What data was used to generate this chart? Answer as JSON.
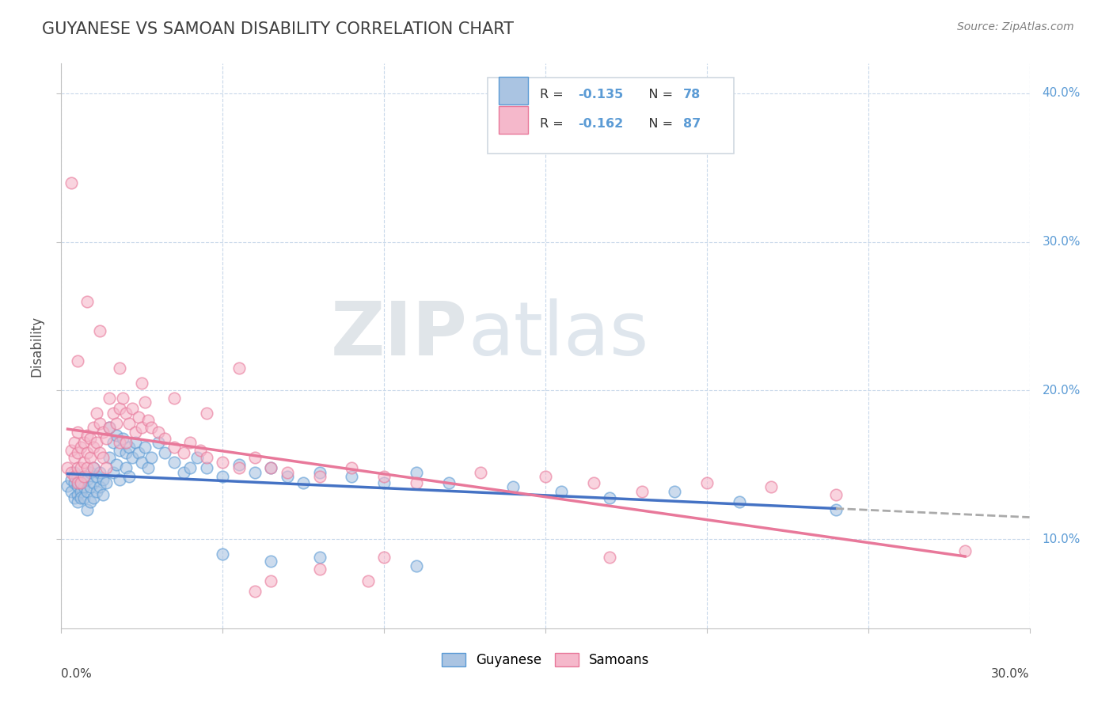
{
  "title": "GUYANESE VS SAMOAN DISABILITY CORRELATION CHART",
  "source": "Source: ZipAtlas.com",
  "ylabel": "Disability",
  "xlim": [
    0.0,
    0.3
  ],
  "ylim": [
    0.04,
    0.42
  ],
  "yticks": [
    0.1,
    0.2,
    0.3,
    0.4
  ],
  "ytick_labels": [
    "10.0%",
    "20.0%",
    "30.0%",
    "40.0%"
  ],
  "xticks": [
    0.0,
    0.05,
    0.1,
    0.15,
    0.2,
    0.25,
    0.3
  ],
  "guyanese_color": "#aac4e2",
  "samoans_color": "#f5b8cb",
  "guyanese_edge": "#5b9bd5",
  "samoans_edge": "#e8789a",
  "guyanese_line_color": "#4472c4",
  "samoans_line_color": "#e8789a",
  "legend_label1": "Guyanese",
  "legend_label2": "Samoans",
  "title_color": "#404040",
  "axis_color": "#5b9bd5",
  "grid_color": "#c8d8ea",
  "guyanese_points": [
    [
      0.002,
      0.136
    ],
    [
      0.003,
      0.14
    ],
    [
      0.003,
      0.132
    ],
    [
      0.004,
      0.138
    ],
    [
      0.004,
      0.128
    ],
    [
      0.004,
      0.145
    ],
    [
      0.005,
      0.142
    ],
    [
      0.005,
      0.13
    ],
    [
      0.005,
      0.136
    ],
    [
      0.005,
      0.125
    ],
    [
      0.006,
      0.138
    ],
    [
      0.006,
      0.132
    ],
    [
      0.006,
      0.128
    ],
    [
      0.007,
      0.142
    ],
    [
      0.007,
      0.135
    ],
    [
      0.007,
      0.128
    ],
    [
      0.008,
      0.14
    ],
    [
      0.008,
      0.132
    ],
    [
      0.008,
      0.12
    ],
    [
      0.009,
      0.145
    ],
    [
      0.009,
      0.135
    ],
    [
      0.009,
      0.125
    ],
    [
      0.01,
      0.148
    ],
    [
      0.01,
      0.138
    ],
    [
      0.01,
      0.128
    ],
    [
      0.011,
      0.142
    ],
    [
      0.011,
      0.132
    ],
    [
      0.012,
      0.145
    ],
    [
      0.012,
      0.135
    ],
    [
      0.013,
      0.14
    ],
    [
      0.013,
      0.13
    ],
    [
      0.014,
      0.138
    ],
    [
      0.015,
      0.175
    ],
    [
      0.015,
      0.155
    ],
    [
      0.016,
      0.165
    ],
    [
      0.016,
      0.145
    ],
    [
      0.017,
      0.17
    ],
    [
      0.017,
      0.15
    ],
    [
      0.018,
      0.16
    ],
    [
      0.018,
      0.14
    ],
    [
      0.019,
      0.168
    ],
    [
      0.02,
      0.158
    ],
    [
      0.02,
      0.148
    ],
    [
      0.021,
      0.162
    ],
    [
      0.021,
      0.142
    ],
    [
      0.022,
      0.155
    ],
    [
      0.023,
      0.165
    ],
    [
      0.024,
      0.158
    ],
    [
      0.025,
      0.152
    ],
    [
      0.026,
      0.162
    ],
    [
      0.027,
      0.148
    ],
    [
      0.028,
      0.155
    ],
    [
      0.03,
      0.165
    ],
    [
      0.032,
      0.158
    ],
    [
      0.035,
      0.152
    ],
    [
      0.038,
      0.145
    ],
    [
      0.04,
      0.148
    ],
    [
      0.042,
      0.155
    ],
    [
      0.045,
      0.148
    ],
    [
      0.05,
      0.142
    ],
    [
      0.055,
      0.15
    ],
    [
      0.06,
      0.145
    ],
    [
      0.065,
      0.148
    ],
    [
      0.07,
      0.142
    ],
    [
      0.075,
      0.138
    ],
    [
      0.08,
      0.145
    ],
    [
      0.09,
      0.142
    ],
    [
      0.1,
      0.138
    ],
    [
      0.11,
      0.145
    ],
    [
      0.12,
      0.138
    ],
    [
      0.14,
      0.135
    ],
    [
      0.155,
      0.132
    ],
    [
      0.17,
      0.128
    ],
    [
      0.19,
      0.132
    ],
    [
      0.21,
      0.125
    ],
    [
      0.24,
      0.12
    ],
    [
      0.05,
      0.09
    ],
    [
      0.065,
      0.085
    ],
    [
      0.08,
      0.088
    ],
    [
      0.11,
      0.082
    ]
  ],
  "samoans_points": [
    [
      0.002,
      0.148
    ],
    [
      0.003,
      0.16
    ],
    [
      0.003,
      0.145
    ],
    [
      0.004,
      0.155
    ],
    [
      0.004,
      0.142
    ],
    [
      0.004,
      0.165
    ],
    [
      0.005,
      0.158
    ],
    [
      0.005,
      0.148
    ],
    [
      0.005,
      0.172
    ],
    [
      0.005,
      0.138
    ],
    [
      0.006,
      0.162
    ],
    [
      0.006,
      0.148
    ],
    [
      0.006,
      0.138
    ],
    [
      0.007,
      0.165
    ],
    [
      0.007,
      0.152
    ],
    [
      0.007,
      0.142
    ],
    [
      0.008,
      0.17
    ],
    [
      0.008,
      0.158
    ],
    [
      0.008,
      0.148
    ],
    [
      0.009,
      0.168
    ],
    [
      0.009,
      0.155
    ],
    [
      0.01,
      0.175
    ],
    [
      0.01,
      0.162
    ],
    [
      0.01,
      0.148
    ],
    [
      0.011,
      0.185
    ],
    [
      0.011,
      0.165
    ],
    [
      0.012,
      0.178
    ],
    [
      0.012,
      0.158
    ],
    [
      0.013,
      0.172
    ],
    [
      0.013,
      0.155
    ],
    [
      0.014,
      0.168
    ],
    [
      0.014,
      0.148
    ],
    [
      0.015,
      0.195
    ],
    [
      0.015,
      0.175
    ],
    [
      0.016,
      0.185
    ],
    [
      0.017,
      0.178
    ],
    [
      0.018,
      0.188
    ],
    [
      0.018,
      0.165
    ],
    [
      0.019,
      0.195
    ],
    [
      0.02,
      0.185
    ],
    [
      0.02,
      0.165
    ],
    [
      0.021,
      0.178
    ],
    [
      0.022,
      0.188
    ],
    [
      0.023,
      0.172
    ],
    [
      0.024,
      0.182
    ],
    [
      0.025,
      0.175
    ],
    [
      0.026,
      0.192
    ],
    [
      0.027,
      0.18
    ],
    [
      0.028,
      0.175
    ],
    [
      0.03,
      0.172
    ],
    [
      0.032,
      0.168
    ],
    [
      0.035,
      0.162
    ],
    [
      0.038,
      0.158
    ],
    [
      0.04,
      0.165
    ],
    [
      0.043,
      0.16
    ],
    [
      0.045,
      0.155
    ],
    [
      0.05,
      0.152
    ],
    [
      0.055,
      0.148
    ],
    [
      0.06,
      0.155
    ],
    [
      0.065,
      0.148
    ],
    [
      0.07,
      0.145
    ],
    [
      0.08,
      0.142
    ],
    [
      0.09,
      0.148
    ],
    [
      0.1,
      0.142
    ],
    [
      0.11,
      0.138
    ],
    [
      0.13,
      0.145
    ],
    [
      0.15,
      0.142
    ],
    [
      0.165,
      0.138
    ],
    [
      0.18,
      0.132
    ],
    [
      0.2,
      0.138
    ],
    [
      0.22,
      0.135
    ],
    [
      0.24,
      0.13
    ],
    [
      0.003,
      0.34
    ],
    [
      0.008,
      0.26
    ],
    [
      0.012,
      0.24
    ],
    [
      0.005,
      0.22
    ],
    [
      0.018,
      0.215
    ],
    [
      0.025,
      0.205
    ],
    [
      0.035,
      0.195
    ],
    [
      0.045,
      0.185
    ],
    [
      0.055,
      0.215
    ],
    [
      0.065,
      0.072
    ],
    [
      0.08,
      0.08
    ],
    [
      0.095,
      0.072
    ],
    [
      0.06,
      0.065
    ],
    [
      0.1,
      0.088
    ],
    [
      0.17,
      0.088
    ],
    [
      0.28,
      0.092
    ]
  ]
}
